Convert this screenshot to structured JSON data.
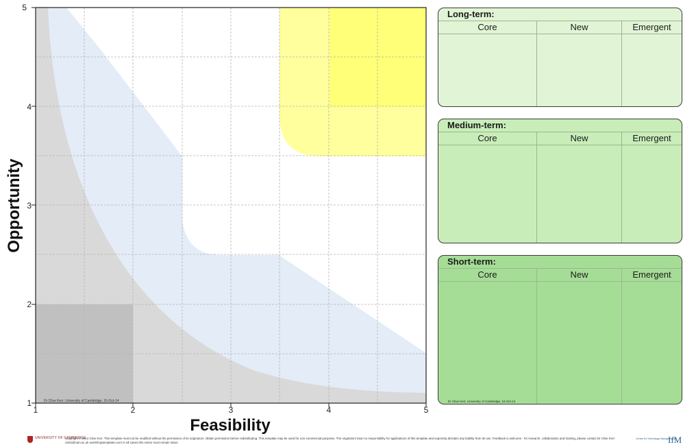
{
  "chart_data": {
    "type": "matrix",
    "title": "",
    "xlabel": "Feasibility",
    "ylabel": "Opportunity",
    "xlim": [
      1,
      5
    ],
    "ylim": [
      1,
      5
    ],
    "x_ticks": [
      "1",
      "2",
      "3",
      "4",
      "5"
    ],
    "y_ticks": [
      "1",
      "2",
      "3",
      "4",
      "5"
    ],
    "grid": true,
    "zones": [
      {
        "name": "grey",
        "color": "#d9d9d9"
      },
      {
        "name": "dark-grey-corner",
        "color": "#bfbfbf"
      },
      {
        "name": "light-blue",
        "color": "#e4ecf8"
      },
      {
        "name": "white",
        "color": "#ffffff"
      },
      {
        "name": "light-yellow",
        "color": "#ffffa0"
      },
      {
        "name": "bright-yellow",
        "color": "#ffff78"
      }
    ],
    "credit": "Dr Clive Kerr, University of Cambridge, 16-Oct-14"
  },
  "panels": {
    "long": {
      "title": "Long-term:",
      "columns": [
        "Core",
        "New",
        "Emergent"
      ]
    },
    "medium": {
      "title": "Medium-term:",
      "columns": [
        "Core",
        "New",
        "Emergent"
      ]
    },
    "short": {
      "title": "Short-term:",
      "columns": [
        "Core",
        "New",
        "Emergent"
      ],
      "credit": "Dr Clive Kerr, University of Cambridge, 16-Oct-14"
    }
  },
  "footer": {
    "university_logo": "UNIVERSITY OF CAMBRIDGE",
    "notice": "Copyright © 2014 Clive Kerr. This template must not be modified without the permission of its originators. Obtain permission before redistributing. This template may be used for non-commercial purposes. The originators bear no responsibility for applications of this template and expressly disclaim any liability from its use. Feedback is welcome - for research, collaboration and training, please contact Dr Clive Kerr: civk2@cam.ac.uk  workshoptemplates.com   In all cases this notice must remain intact.",
    "ifm_small": "Centre for Technology Management",
    "ifm_logo": "IfM"
  }
}
